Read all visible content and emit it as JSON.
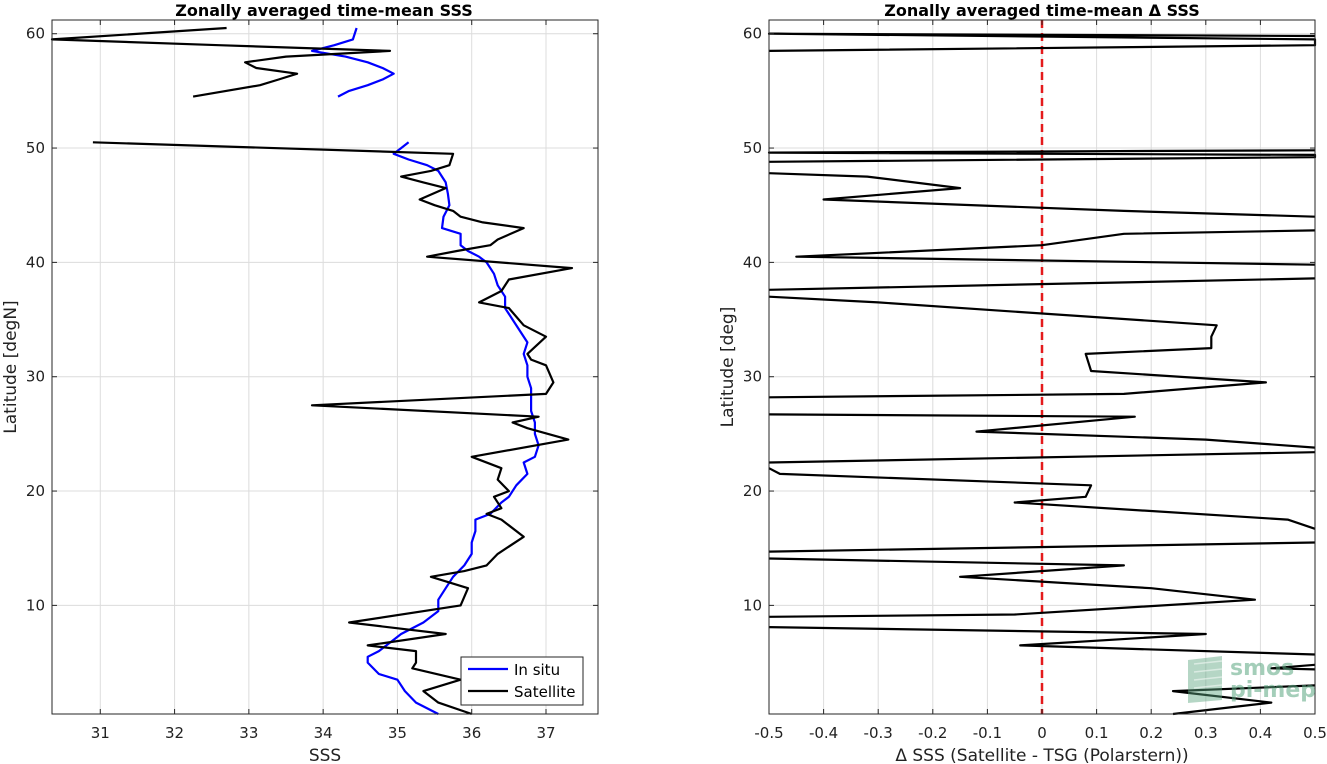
{
  "chart_data": [
    {
      "type": "line",
      "title": "Zonally averaged time-mean SSS",
      "xlabel": "SSS",
      "ylabel": "Latitude [degN]",
      "xlim": [
        30.35,
        37.7
      ],
      "ylim": [
        0.5,
        61.2
      ],
      "xticks": [
        31,
        32,
        33,
        34,
        35,
        36,
        37
      ],
      "yticks": [
        10,
        20,
        30,
        40,
        50,
        60
      ],
      "grid": true,
      "legend": "bottom-right",
      "colors": {
        "In situ": "#0000ff",
        "Satellite": "#000000"
      },
      "series": [
        {
          "name": "In situ",
          "segments": [
            [
              [
                34.45,
                60.5
              ],
              [
                34.4,
                59.5
              ],
              [
                34.15,
                59.0
              ],
              [
                33.85,
                58.5
              ],
              [
                34.3,
                58.0
              ],
              [
                34.6,
                57.5
              ],
              [
                34.8,
                57.0
              ],
              [
                34.95,
                56.5
              ],
              [
                34.8,
                56.0
              ],
              [
                34.6,
                55.5
              ],
              [
                34.35,
                55.0
              ],
              [
                34.2,
                54.5
              ]
            ],
            [
              [
                35.15,
                50.5
              ],
              [
                35.05,
                50.0
              ],
              [
                34.95,
                49.5
              ],
              [
                35.15,
                49.0
              ],
              [
                35.4,
                48.5
              ],
              [
                35.55,
                48.0
              ],
              [
                35.65,
                47.0
              ],
              [
                35.68,
                46.0
              ],
              [
                35.7,
                45.0
              ],
              [
                35.62,
                44.0
              ],
              [
                35.6,
                43.0
              ],
              [
                35.85,
                42.5
              ],
              [
                35.85,
                41.5
              ],
              [
                35.95,
                41.0
              ],
              [
                36.1,
                40.5
              ],
              [
                36.2,
                40.0
              ],
              [
                36.3,
                39.0
              ],
              [
                36.35,
                38.0
              ],
              [
                36.45,
                37.0
              ],
              [
                36.45,
                36.0
              ],
              [
                36.55,
                35.0
              ],
              [
                36.65,
                34.0
              ],
              [
                36.75,
                33.0
              ],
              [
                36.7,
                32.0
              ],
              [
                36.75,
                31.0
              ],
              [
                36.75,
                30.0
              ],
              [
                36.8,
                29.0
              ],
              [
                36.8,
                28.0
              ],
              [
                36.8,
                27.0
              ],
              [
                36.85,
                26.0
              ],
              [
                36.85,
                25.0
              ],
              [
                36.9,
                24.0
              ],
              [
                36.85,
                23.0
              ],
              [
                36.7,
                22.5
              ],
              [
                36.75,
                21.5
              ],
              [
                36.6,
                20.5
              ],
              [
                36.5,
                19.5
              ],
              [
                36.4,
                19.0
              ],
              [
                36.25,
                18.0
              ],
              [
                36.05,
                17.5
              ],
              [
                36.05,
                16.5
              ],
              [
                36.0,
                15.5
              ],
              [
                36.0,
                14.5
              ],
              [
                35.9,
                13.5
              ],
              [
                35.75,
                12.5
              ],
              [
                35.65,
                11.5
              ],
              [
                35.55,
                10.5
              ],
              [
                35.55,
                9.5
              ],
              [
                35.35,
                8.5
              ],
              [
                35.05,
                7.5
              ],
              [
                34.95,
                7.0
              ],
              [
                34.75,
                6.0
              ],
              [
                34.6,
                5.5
              ],
              [
                34.6,
                5.0
              ],
              [
                34.75,
                4.0
              ],
              [
                35.0,
                3.5
              ],
              [
                35.1,
                2.5
              ],
              [
                35.25,
                1.5
              ],
              [
                35.55,
                0.5
              ]
            ]
          ]
        },
        {
          "name": "Satellite",
          "segments": [
            [
              [
                32.7,
                60.5
              ],
              [
                30.35,
                59.5
              ],
              [
                32.6,
                59.0
              ],
              [
                34.9,
                58.5
              ],
              [
                33.5,
                58.0
              ],
              [
                32.95,
                57.5
              ],
              [
                33.1,
                57.0
              ],
              [
                33.65,
                56.5
              ],
              [
                33.4,
                56.0
              ],
              [
                33.15,
                55.5
              ],
              [
                32.25,
                54.5
              ]
            ],
            [
              [
                30.9,
                50.5
              ],
              [
                35.75,
                49.5
              ],
              [
                35.7,
                48.5
              ],
              [
                35.45,
                48.0
              ],
              [
                35.05,
                47.5
              ],
              [
                35.35,
                47.0
              ],
              [
                35.65,
                46.5
              ],
              [
                35.3,
                45.5
              ],
              [
                35.5,
                45.0
              ],
              [
                35.75,
                44.5
              ],
              [
                35.85,
                44.0
              ],
              [
                36.15,
                43.5
              ],
              [
                36.7,
                43.0
              ],
              [
                36.35,
                42.0
              ],
              [
                36.25,
                41.5
              ],
              [
                35.8,
                41.0
              ],
              [
                35.4,
                40.5
              ],
              [
                37.35,
                39.5
              ],
              [
                36.5,
                38.5
              ],
              [
                36.4,
                37.5
              ],
              [
                36.1,
                36.5
              ],
              [
                36.5,
                36.0
              ],
              [
                36.7,
                34.5
              ],
              [
                37.0,
                33.5
              ],
              [
                36.75,
                32.0
              ],
              [
                36.8,
                31.5
              ],
              [
                37.0,
                31.0
              ],
              [
                37.1,
                29.5
              ],
              [
                37.0,
                28.5
              ],
              [
                33.85,
                27.5
              ],
              [
                36.9,
                26.5
              ],
              [
                36.55,
                26.0
              ],
              [
                36.75,
                25.5
              ],
              [
                37.3,
                24.5
              ],
              [
                36.0,
                23.0
              ],
              [
                36.4,
                22.0
              ],
              [
                36.35,
                21.0
              ],
              [
                36.5,
                20.0
              ],
              [
                36.3,
                19.5
              ],
              [
                36.4,
                18.5
              ],
              [
                36.2,
                18.0
              ],
              [
                36.4,
                17.5
              ],
              [
                36.7,
                16.0
              ],
              [
                36.35,
                14.5
              ],
              [
                36.2,
                13.5
              ],
              [
                35.9,
                13.0
              ],
              [
                35.45,
                12.5
              ],
              [
                35.95,
                11.5
              ],
              [
                35.85,
                10.0
              ],
              [
                34.35,
                8.5
              ],
              [
                35.65,
                7.5
              ],
              [
                34.6,
                6.5
              ],
              [
                35.25,
                6.0
              ],
              [
                35.25,
                5.0
              ],
              [
                35.2,
                4.5
              ],
              [
                35.85,
                3.5
              ],
              [
                35.35,
                2.5
              ],
              [
                35.45,
                2.0
              ],
              [
                35.55,
                1.5
              ],
              [
                36.0,
                0.5
              ]
            ]
          ]
        }
      ]
    },
    {
      "type": "line",
      "title": "Zonally averaged time-mean Δ SSS",
      "xlabel": "Δ SSS (Satellite - TSG (Polarstern))",
      "ylabel": "Latitude [deg]",
      "xlim": [
        -0.5,
        0.5
      ],
      "ylim": [
        0.5,
        61.2
      ],
      "xticks": [
        -0.5,
        -0.4,
        -0.3,
        -0.2,
        -0.1,
        0,
        0.1,
        0.2,
        0.3,
        0.4,
        0.5
      ],
      "xtick_labels": [
        "-0.5",
        "-0.4",
        "-0.3",
        "-0.2",
        "-0.1",
        "0",
        "0.1",
        "0.2",
        "0.3",
        "0.4",
        "0.5"
      ],
      "yticks": [
        10,
        20,
        30,
        40,
        50,
        60
      ],
      "grid": true,
      "reference_line": {
        "x": 0,
        "color": "#e41a1c",
        "style": "dashed"
      },
      "series": [
        {
          "name": "",
          "color": "#000000",
          "segments": [
            [
              [
                0.5,
                59.8
              ],
              [
                -0.5,
                60.0
              ],
              [
                0.5,
                59.5
              ],
              [
                0.5,
                59.0
              ],
              [
                -0.5,
                58.5
              ]
            ],
            [
              [
                0.5,
                49.8
              ],
              [
                -0.5,
                49.6
              ],
              [
                0.5,
                49.4
              ],
              [
                0.5,
                49.2
              ],
              [
                -0.5,
                48.8
              ]
            ],
            [
              [
                -0.5,
                47.8
              ],
              [
                -0.32,
                47.5
              ],
              [
                -0.15,
                46.5
              ],
              [
                -0.4,
                45.5
              ],
              [
                0.15,
                44.5
              ],
              [
                0.5,
                44.0
              ]
            ],
            [
              [
                0.5,
                42.8
              ],
              [
                0.15,
                42.5
              ],
              [
                0.0,
                41.5
              ],
              [
                -0.45,
                40.5
              ],
              [
                0.5,
                39.8
              ]
            ],
            [
              [
                0.5,
                38.6
              ],
              [
                -0.5,
                37.6
              ]
            ],
            [
              [
                -0.5,
                37.0
              ],
              [
                -0.3,
                36.5
              ],
              [
                0.32,
                34.5
              ],
              [
                0.31,
                33.5
              ],
              [
                0.31,
                32.5
              ],
              [
                0.08,
                32.0
              ],
              [
                0.09,
                30.5
              ],
              [
                0.41,
                29.5
              ],
              [
                0.15,
                28.5
              ],
              [
                -0.5,
                28.2
              ]
            ],
            [
              [
                -0.5,
                26.7
              ],
              [
                0.17,
                26.5
              ],
              [
                -0.12,
                25.2
              ],
              [
                0.3,
                24.5
              ],
              [
                0.5,
                23.8
              ]
            ],
            [
              [
                0.5,
                23.4
              ],
              [
                -0.5,
                22.5
              ]
            ],
            [
              [
                -0.5,
                22.0
              ],
              [
                -0.48,
                21.5
              ],
              [
                0.09,
                20.5
              ],
              [
                0.08,
                19.5
              ],
              [
                -0.05,
                19.0
              ],
              [
                0.45,
                17.5
              ],
              [
                0.5,
                16.7
              ]
            ],
            [
              [
                0.5,
                15.5
              ],
              [
                -0.5,
                14.7
              ]
            ],
            [
              [
                -0.5,
                14.1
              ],
              [
                0.15,
                13.5
              ],
              [
                -0.15,
                12.5
              ],
              [
                0.2,
                11.5
              ],
              [
                0.39,
                10.5
              ],
              [
                -0.05,
                9.2
              ],
              [
                -0.5,
                9.0
              ]
            ],
            [
              [
                -0.5,
                8.1
              ],
              [
                0.3,
                7.5
              ],
              [
                -0.04,
                6.5
              ],
              [
                0.5,
                5.7
              ]
            ],
            [
              [
                0.5,
                4.8
              ],
              [
                0.42,
                4.5
              ],
              [
                0.5,
                4.4
              ]
            ],
            [
              [
                0.5,
                3.0
              ],
              [
                0.24,
                2.5
              ],
              [
                0.42,
                1.5
              ],
              [
                0.24,
                0.5
              ]
            ]
          ]
        }
      ]
    }
  ],
  "legend_entries": [
    "In situ",
    "Satellite"
  ],
  "watermark": {
    "line1": "smos",
    "line2": "pi-mep"
  }
}
